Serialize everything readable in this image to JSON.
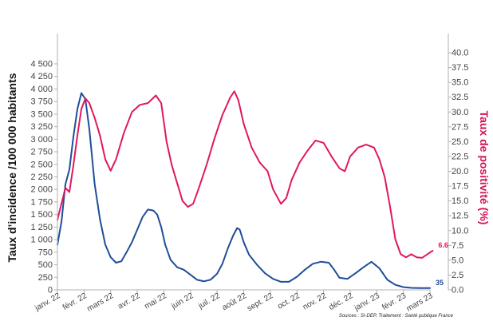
{
  "chart_data": {
    "type": "line",
    "y_left_label": "Taux d’incidence /100 000 habitants",
    "y_right_label": "Taux de positivité (%)",
    "source": "Sources : SI-DEP, Traitement : Santé publique France",
    "x_ticks": [
      "janv. 22",
      "févr. 22",
      "mars 22",
      "avr. 22",
      "mai 22",
      "juin 22",
      "juil. 22",
      "août 22",
      "sept. 22",
      "oct. 22",
      "nov. 22",
      "déc. 22",
      "janv. 23",
      "févr. 23",
      "mars 23"
    ],
    "y_left_ticks": [
      "0",
      "250",
      "500",
      "750",
      "1 000",
      "1 250",
      "1 500",
      "1 750",
      "2 000",
      "2 250",
      "2 500",
      "2 750",
      "3 000",
      "3 250",
      "3 500",
      "3 750",
      "4 000",
      "4 250",
      "4 500"
    ],
    "y_right_ticks": [
      "0.0",
      "2.5",
      "5.0",
      "7.5",
      "10.0",
      "12.5",
      "15.0",
      "17.5",
      "20.0",
      "22.5",
      "25.0",
      "27.5",
      "30.0",
      "32.5",
      "35.0",
      "37.5",
      "40.0"
    ],
    "y_left_range": [
      0,
      4500
    ],
    "y_right_range": [
      0,
      40
    ],
    "x_range_months": [
      0,
      14
    ],
    "series": [
      {
        "axis": "left",
        "color": "#1f4e99",
        "end_label": "35",
        "points": [
          [
            0,
            900
          ],
          [
            0.15,
            1350
          ],
          [
            0.3,
            2100
          ],
          [
            0.45,
            2400
          ],
          [
            0.6,
            3050
          ],
          [
            0.75,
            3600
          ],
          [
            0.9,
            3920
          ],
          [
            1.05,
            3800
          ],
          [
            1.2,
            3200
          ],
          [
            1.4,
            2100
          ],
          [
            1.6,
            1400
          ],
          [
            1.8,
            900
          ],
          [
            2.0,
            650
          ],
          [
            2.2,
            540
          ],
          [
            2.4,
            570
          ],
          [
            2.6,
            750
          ],
          [
            2.8,
            950
          ],
          [
            3.0,
            1200
          ],
          [
            3.2,
            1450
          ],
          [
            3.4,
            1600
          ],
          [
            3.6,
            1580
          ],
          [
            3.75,
            1500
          ],
          [
            3.9,
            1250
          ],
          [
            4.05,
            900
          ],
          [
            4.25,
            600
          ],
          [
            4.5,
            450
          ],
          [
            4.75,
            400
          ],
          [
            5.0,
            300
          ],
          [
            5.25,
            200
          ],
          [
            5.5,
            170
          ],
          [
            5.75,
            200
          ],
          [
            6.0,
            320
          ],
          [
            6.2,
            520
          ],
          [
            6.4,
            820
          ],
          [
            6.6,
            1080
          ],
          [
            6.75,
            1230
          ],
          [
            6.85,
            1200
          ],
          [
            7.0,
            950
          ],
          [
            7.2,
            700
          ],
          [
            7.5,
            500
          ],
          [
            7.8,
            330
          ],
          [
            8.1,
            220
          ],
          [
            8.4,
            160
          ],
          [
            8.7,
            160
          ],
          [
            9.0,
            260
          ],
          [
            9.3,
            400
          ],
          [
            9.6,
            520
          ],
          [
            9.9,
            560
          ],
          [
            10.2,
            540
          ],
          [
            10.4,
            400
          ],
          [
            10.6,
            240
          ],
          [
            10.9,
            220
          ],
          [
            11.2,
            330
          ],
          [
            11.5,
            450
          ],
          [
            11.8,
            560
          ],
          [
            12.1,
            430
          ],
          [
            12.4,
            200
          ],
          [
            12.7,
            100
          ],
          [
            13.0,
            55
          ],
          [
            13.3,
            40
          ],
          [
            13.6,
            35
          ],
          [
            14.0,
            35
          ]
        ]
      },
      {
        "axis": "right",
        "color": "#e0185f",
        "end_label": "6.6",
        "points": [
          [
            0,
            11.8
          ],
          [
            0.15,
            14.5
          ],
          [
            0.3,
            17.2
          ],
          [
            0.45,
            16.5
          ],
          [
            0.6,
            21.0
          ],
          [
            0.75,
            26.0
          ],
          [
            0.9,
            30.5
          ],
          [
            1.05,
            32.3
          ],
          [
            1.2,
            31.5
          ],
          [
            1.4,
            29.0
          ],
          [
            1.6,
            26.0
          ],
          [
            1.8,
            22.0
          ],
          [
            2.0,
            20.1
          ],
          [
            2.2,
            22.0
          ],
          [
            2.5,
            26.5
          ],
          [
            2.8,
            30.0
          ],
          [
            3.1,
            31.2
          ],
          [
            3.4,
            31.5
          ],
          [
            3.7,
            32.8
          ],
          [
            3.9,
            31.5
          ],
          [
            4.1,
            25.0
          ],
          [
            4.3,
            21.0
          ],
          [
            4.5,
            18.0
          ],
          [
            4.7,
            15.0
          ],
          [
            4.9,
            14.0
          ],
          [
            5.1,
            14.5
          ],
          [
            5.3,
            17.0
          ],
          [
            5.6,
            21.0
          ],
          [
            5.9,
            25.5
          ],
          [
            6.2,
            29.5
          ],
          [
            6.5,
            32.5
          ],
          [
            6.65,
            33.5
          ],
          [
            6.8,
            32.0
          ],
          [
            7.0,
            28.0
          ],
          [
            7.3,
            24.0
          ],
          [
            7.6,
            21.5
          ],
          [
            7.9,
            20.0
          ],
          [
            8.1,
            17.0
          ],
          [
            8.4,
            14.5
          ],
          [
            8.6,
            15.5
          ],
          [
            8.8,
            18.5
          ],
          [
            9.1,
            21.5
          ],
          [
            9.4,
            23.5
          ],
          [
            9.7,
            25.2
          ],
          [
            10.0,
            24.8
          ],
          [
            10.3,
            22.5
          ],
          [
            10.6,
            20.5
          ],
          [
            10.8,
            20.0
          ],
          [
            11.0,
            22.5
          ],
          [
            11.3,
            24.0
          ],
          [
            11.6,
            24.5
          ],
          [
            11.9,
            24.0
          ],
          [
            12.1,
            22.0
          ],
          [
            12.3,
            19.0
          ],
          [
            12.5,
            14.0
          ],
          [
            12.7,
            8.5
          ],
          [
            12.9,
            6.0
          ],
          [
            13.1,
            5.5
          ],
          [
            13.3,
            6.0
          ],
          [
            13.5,
            5.5
          ],
          [
            13.7,
            5.4
          ],
          [
            13.9,
            6.0
          ],
          [
            14.1,
            6.6
          ]
        ]
      }
    ]
  }
}
